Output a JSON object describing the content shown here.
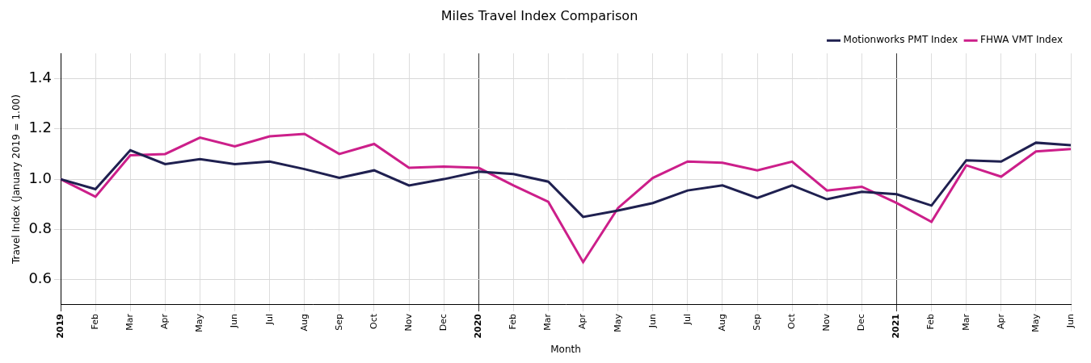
{
  "chart_data": {
    "type": "line",
    "title": "Miles Travel Index Comparison",
    "x_label": "Month",
    "y_label": "Travel Index (January 2019 = 1.00)",
    "categories": [
      "2019",
      "Feb",
      "Mar",
      "Apr",
      "May",
      "Jun",
      "Jul",
      "Aug",
      "Sep",
      "Oct",
      "Nov",
      "Dec",
      "2020",
      "Feb",
      "Mar",
      "Apr",
      "May",
      "Jun",
      "Jul",
      "Aug",
      "Sep",
      "Oct",
      "Nov",
      "Dec",
      "2021",
      "Feb",
      "Mar",
      "Apr",
      "May",
      "Jun"
    ],
    "series": [
      {
        "name": "Motionworks PMT Index",
        "color": "#1f2050",
        "values": [
          1.0,
          0.96,
          1.115,
          1.06,
          1.08,
          1.06,
          1.07,
          1.04,
          1.005,
          1.035,
          0.975,
          1.0,
          1.03,
          1.02,
          0.99,
          0.85,
          0.875,
          0.905,
          0.955,
          0.975,
          0.925,
          0.975,
          0.92,
          0.95,
          0.94,
          0.895,
          1.075,
          1.07,
          1.145,
          1.135
        ]
      },
      {
        "name": "FHWA VMT Index",
        "color": "#cc1f8a",
        "values": [
          1.0,
          0.93,
          1.095,
          1.1,
          1.165,
          1.13,
          1.17,
          1.18,
          1.1,
          1.14,
          1.045,
          1.05,
          1.045,
          0.975,
          0.91,
          0.67,
          0.885,
          1.005,
          1.07,
          1.065,
          1.035,
          1.07,
          0.955,
          0.97,
          0.905,
          0.83,
          1.055,
          1.01,
          1.11,
          1.12
        ]
      }
    ],
    "ylim": [
      0.5,
      1.5
    ],
    "yticks": [
      0.6,
      0.8,
      {
        "value": 1.0,
        "label": "1.0"
      },
      1.2,
      1.4
    ],
    "grid": true,
    "legend": "upper right"
  }
}
